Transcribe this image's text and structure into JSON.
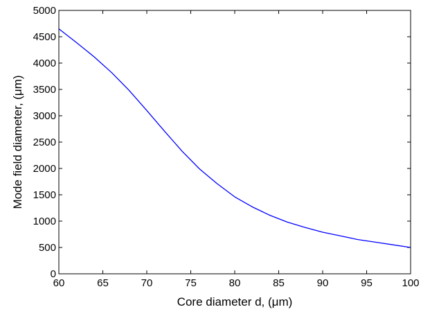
{
  "chart_data": {
    "type": "line",
    "xlabel_text": "Core diameter d, (",
    "xlabel_unit": "μm",
    "xlabel_close": ")",
    "ylabel_text": "Mode field diameter, (",
    "ylabel_unit": "μm",
    "ylabel_close": ")",
    "xlim": [
      60,
      100
    ],
    "ylim": [
      0,
      5000
    ],
    "xticks": [
      60,
      65,
      70,
      75,
      80,
      85,
      90,
      95,
      100
    ],
    "yticks": [
      0,
      500,
      1000,
      1500,
      2000,
      2500,
      3000,
      3500,
      4000,
      4500,
      5000
    ],
    "grid": false,
    "series": [
      {
        "color": "#0000ff",
        "x": [
          60,
          62,
          64,
          66,
          68,
          70,
          72,
          74,
          76,
          78,
          80,
          82,
          84,
          86,
          88,
          90,
          92,
          94,
          96,
          98,
          100
        ],
        "y": [
          4650,
          4390,
          4120,
          3820,
          3480,
          3100,
          2710,
          2330,
          1990,
          1710,
          1460,
          1270,
          1110,
          980,
          880,
          790,
          720,
          650,
          600,
          550,
          500
        ]
      }
    ]
  }
}
